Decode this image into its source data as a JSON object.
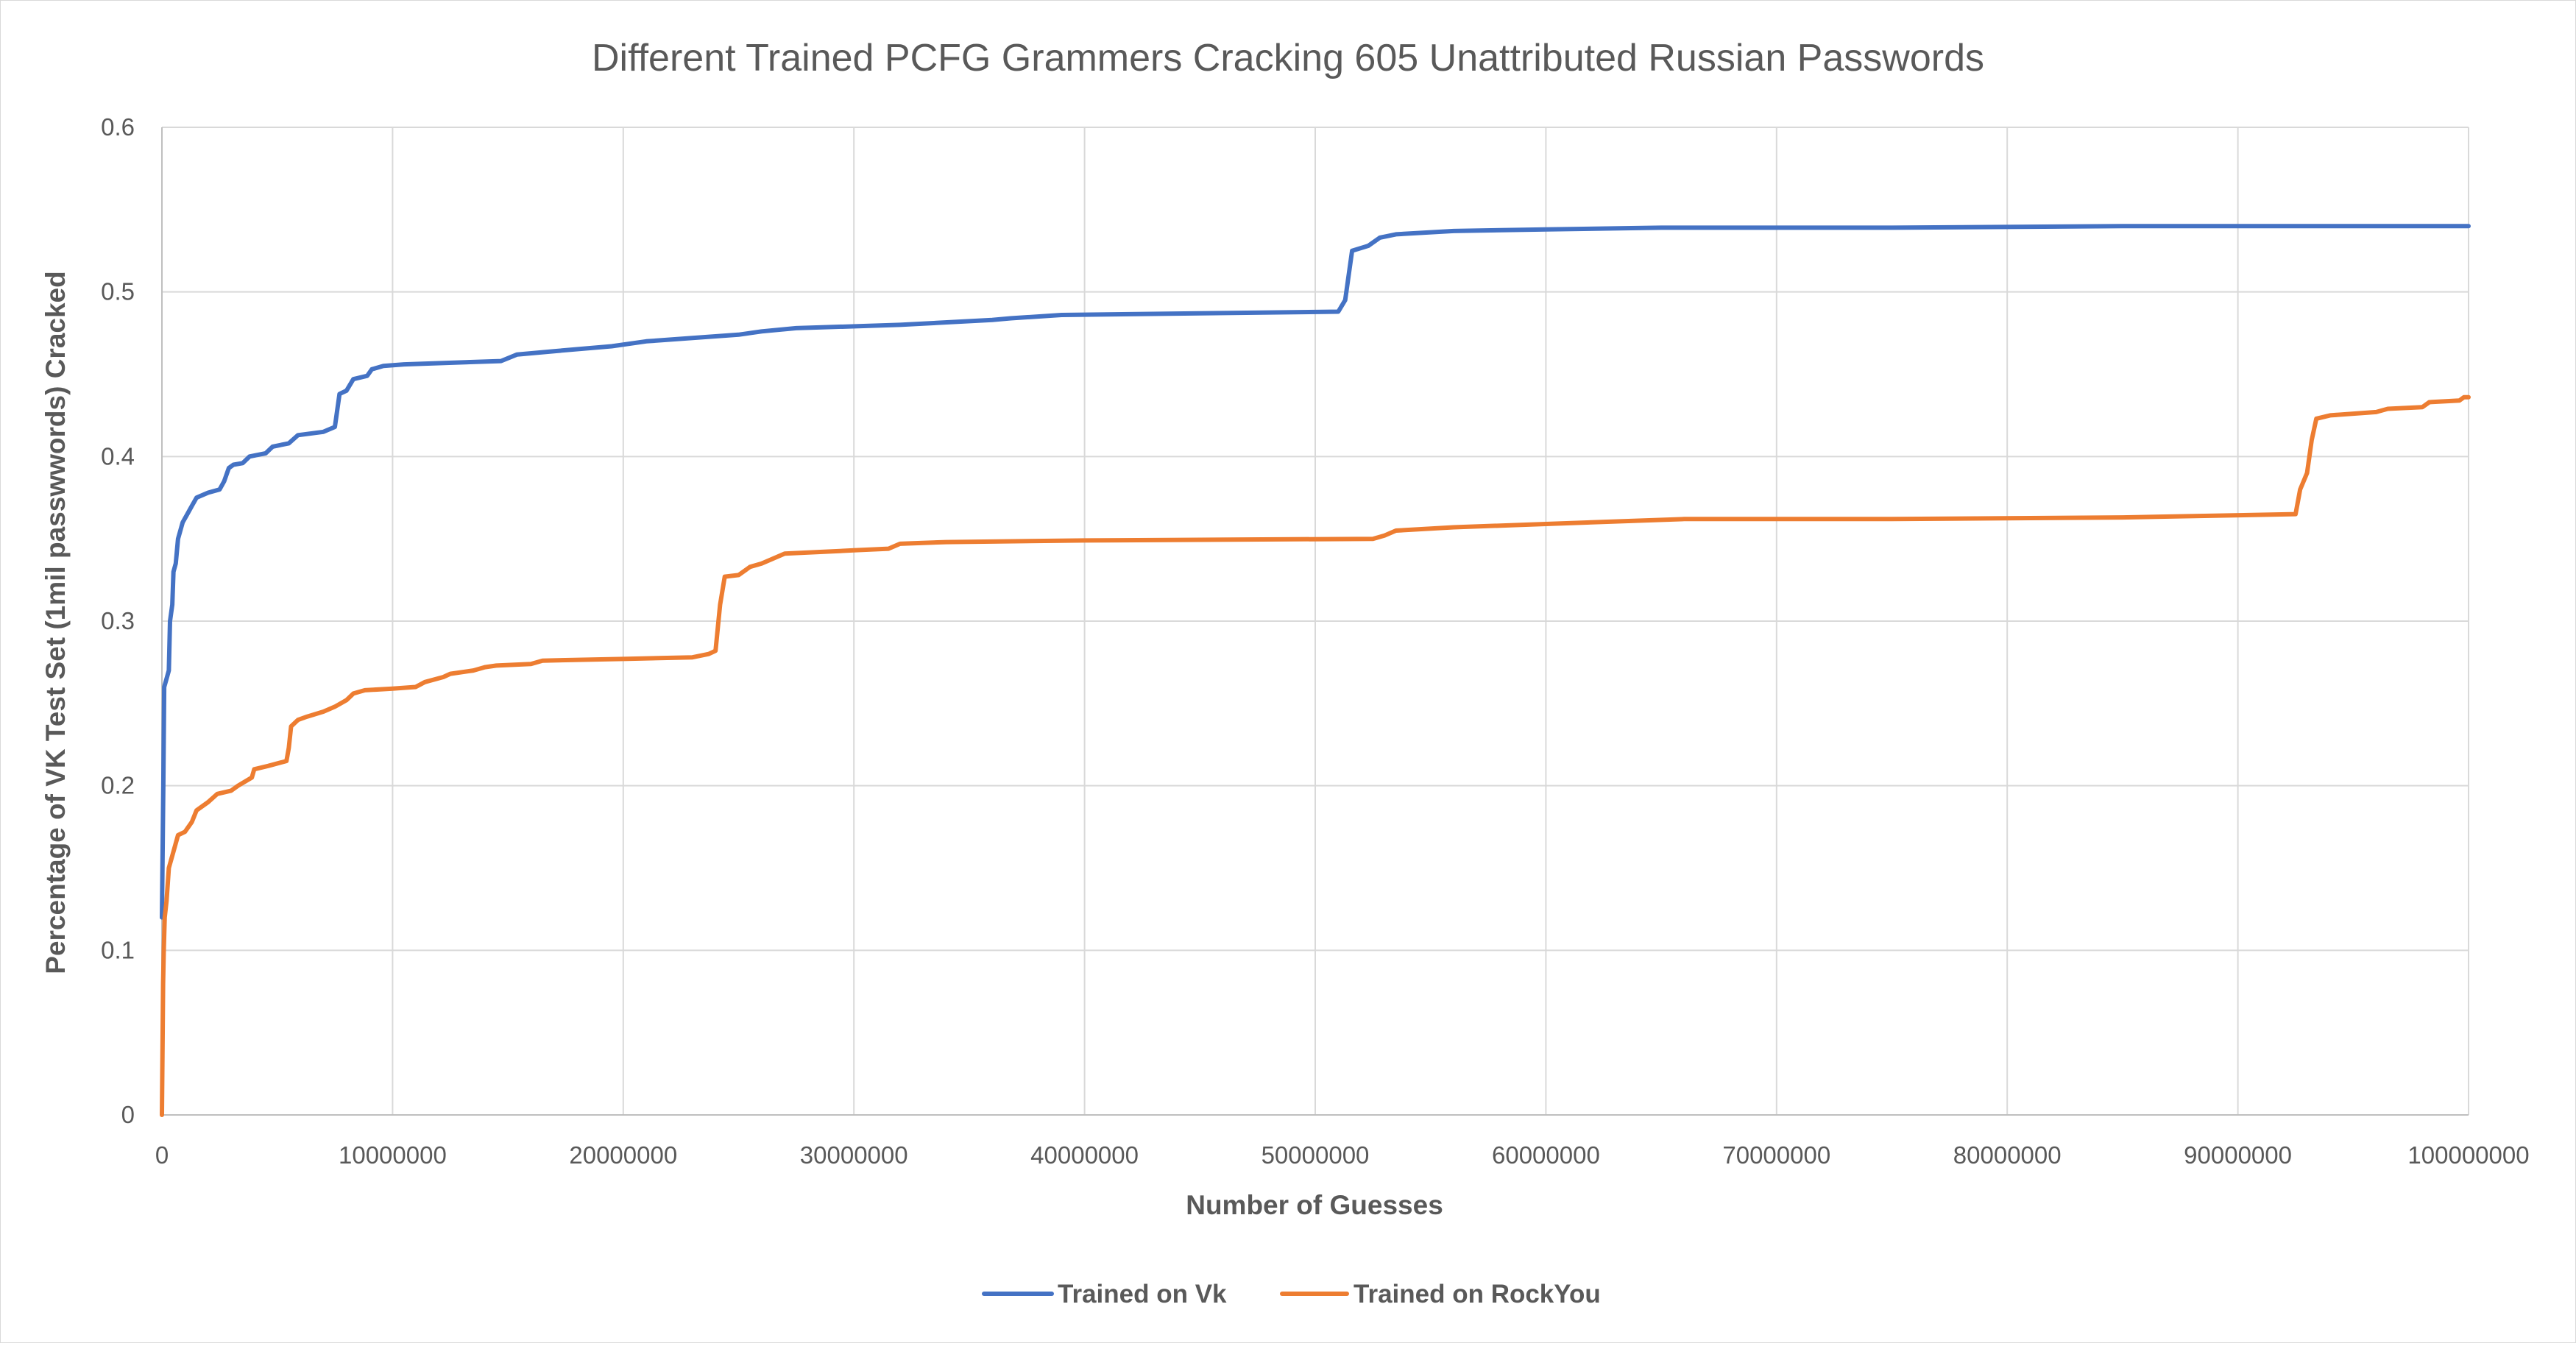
{
  "chart_data": {
    "type": "line",
    "title": "Different Trained PCFG Grammers Cracking 605 Unattributed Russian Passwords",
    "xlabel": "Number of Guesses",
    "ylabel": "Percentage of VK Test Set (1mil passwwords) Cracked",
    "xlim": [
      0,
      100000000
    ],
    "ylim": [
      0,
      0.6
    ],
    "x_ticks": [
      0,
      10000000,
      20000000,
      30000000,
      40000000,
      50000000,
      60000000,
      70000000,
      80000000,
      90000000,
      100000000
    ],
    "x_tick_labels": [
      "0",
      "10000000",
      "20000000",
      "30000000",
      "40000000",
      "50000000",
      "60000000",
      "70000000",
      "80000000",
      "90000000",
      "100000000"
    ],
    "y_ticks": [
      0,
      0.1,
      0.2,
      0.3,
      0.4,
      0.5,
      0.6
    ],
    "y_tick_labels": [
      "0",
      "0.1",
      "0.2",
      "0.3",
      "0.4",
      "0.5",
      "0.6"
    ],
    "grid": true,
    "legend_position": "bottom",
    "series": [
      {
        "name": "Trained on Vk",
        "color": "#4472C4",
        "points": [
          [
            0,
            0.12
          ],
          [
            60000,
            0.2
          ],
          [
            100000,
            0.26
          ],
          [
            200000,
            0.265
          ],
          [
            300000,
            0.27
          ],
          [
            350000,
            0.3
          ],
          [
            450000,
            0.31
          ],
          [
            500000,
            0.33
          ],
          [
            600000,
            0.335
          ],
          [
            700000,
            0.35
          ],
          [
            900000,
            0.36
          ],
          [
            1100000,
            0.365
          ],
          [
            1300000,
            0.37
          ],
          [
            1500000,
            0.375
          ],
          [
            2000000,
            0.378
          ],
          [
            2500000,
            0.38
          ],
          [
            2700000,
            0.385
          ],
          [
            2900000,
            0.393
          ],
          [
            3100000,
            0.395
          ],
          [
            3500000,
            0.396
          ],
          [
            3800000,
            0.4
          ],
          [
            4500000,
            0.402
          ],
          [
            4800000,
            0.406
          ],
          [
            5500000,
            0.408
          ],
          [
            5900000,
            0.413
          ],
          [
            7000000,
            0.415
          ],
          [
            7500000,
            0.418
          ],
          [
            7700000,
            0.438
          ],
          [
            8000000,
            0.44
          ],
          [
            8300000,
            0.447
          ],
          [
            8900000,
            0.449
          ],
          [
            9100000,
            0.453
          ],
          [
            9600000,
            0.455
          ],
          [
            10500000,
            0.456
          ],
          [
            14700000,
            0.458
          ],
          [
            15400000,
            0.462
          ],
          [
            17000000,
            0.464
          ],
          [
            19500000,
            0.467
          ],
          [
            21000000,
            0.47
          ],
          [
            23000000,
            0.472
          ],
          [
            25000000,
            0.474
          ],
          [
            26000000,
            0.476
          ],
          [
            27500000,
            0.478
          ],
          [
            32000000,
            0.48
          ],
          [
            36000000,
            0.483
          ],
          [
            36800000,
            0.484
          ],
          [
            39000000,
            0.486
          ],
          [
            45000000,
            0.487
          ],
          [
            51000000,
            0.488
          ],
          [
            51300000,
            0.495
          ],
          [
            51600000,
            0.525
          ],
          [
            52300000,
            0.528
          ],
          [
            52800000,
            0.533
          ],
          [
            53500000,
            0.535
          ],
          [
            56000000,
            0.537
          ],
          [
            60000000,
            0.538
          ],
          [
            65000000,
            0.539
          ],
          [
            75000000,
            0.539
          ],
          [
            85000000,
            0.54
          ],
          [
            100000000,
            0.54
          ]
        ]
      },
      {
        "name": "Trained on RockYou",
        "color": "#ED7D31",
        "points": [
          [
            0,
            0
          ],
          [
            50000,
            0.08
          ],
          [
            80000,
            0.1
          ],
          [
            120000,
            0.12
          ],
          [
            200000,
            0.13
          ],
          [
            300000,
            0.15
          ],
          [
            500000,
            0.16
          ],
          [
            700000,
            0.17
          ],
          [
            1000000,
            0.172
          ],
          [
            1300000,
            0.178
          ],
          [
            1500000,
            0.185
          ],
          [
            2000000,
            0.19
          ],
          [
            2400000,
            0.195
          ],
          [
            3000000,
            0.197
          ],
          [
            3300000,
            0.2
          ],
          [
            3900000,
            0.205
          ],
          [
            4000000,
            0.21
          ],
          [
            4600000,
            0.212
          ],
          [
            5400000,
            0.215
          ],
          [
            5500000,
            0.223
          ],
          [
            5600000,
            0.236
          ],
          [
            5900000,
            0.24
          ],
          [
            6300000,
            0.242
          ],
          [
            7000000,
            0.245
          ],
          [
            7500000,
            0.248
          ],
          [
            8000000,
            0.252
          ],
          [
            8300000,
            0.256
          ],
          [
            8800000,
            0.258
          ],
          [
            10000000,
            0.259
          ],
          [
            11000000,
            0.26
          ],
          [
            11400000,
            0.263
          ],
          [
            12200000,
            0.266
          ],
          [
            12500000,
            0.268
          ],
          [
            13500000,
            0.27
          ],
          [
            14000000,
            0.272
          ],
          [
            14500000,
            0.273
          ],
          [
            16000000,
            0.274
          ],
          [
            16500000,
            0.276
          ],
          [
            20000000,
            0.277
          ],
          [
            23000000,
            0.278
          ],
          [
            23700000,
            0.28
          ],
          [
            24000000,
            0.282
          ],
          [
            24200000,
            0.31
          ],
          [
            24400000,
            0.327
          ],
          [
            25000000,
            0.328
          ],
          [
            25500000,
            0.333
          ],
          [
            26000000,
            0.335
          ],
          [
            26500000,
            0.338
          ],
          [
            27000000,
            0.341
          ],
          [
            30000000,
            0.343
          ],
          [
            31500000,
            0.344
          ],
          [
            32000000,
            0.347
          ],
          [
            34000000,
            0.348
          ],
          [
            40000000,
            0.349
          ],
          [
            52500000,
            0.35
          ],
          [
            53000000,
            0.352
          ],
          [
            53500000,
            0.355
          ],
          [
            56000000,
            0.357
          ],
          [
            60000000,
            0.359
          ],
          [
            66000000,
            0.362
          ],
          [
            75000000,
            0.362
          ],
          [
            85000000,
            0.363
          ],
          [
            92500000,
            0.365
          ],
          [
            92700000,
            0.38
          ],
          [
            93000000,
            0.39
          ],
          [
            93200000,
            0.41
          ],
          [
            93400000,
            0.423
          ],
          [
            94000000,
            0.425
          ],
          [
            96000000,
            0.427
          ],
          [
            96500000,
            0.429
          ],
          [
            98000000,
            0.43
          ],
          [
            98300000,
            0.433
          ],
          [
            99600000,
            0.434
          ],
          [
            99800000,
            0.436
          ],
          [
            100000000,
            0.436
          ]
        ]
      }
    ]
  }
}
